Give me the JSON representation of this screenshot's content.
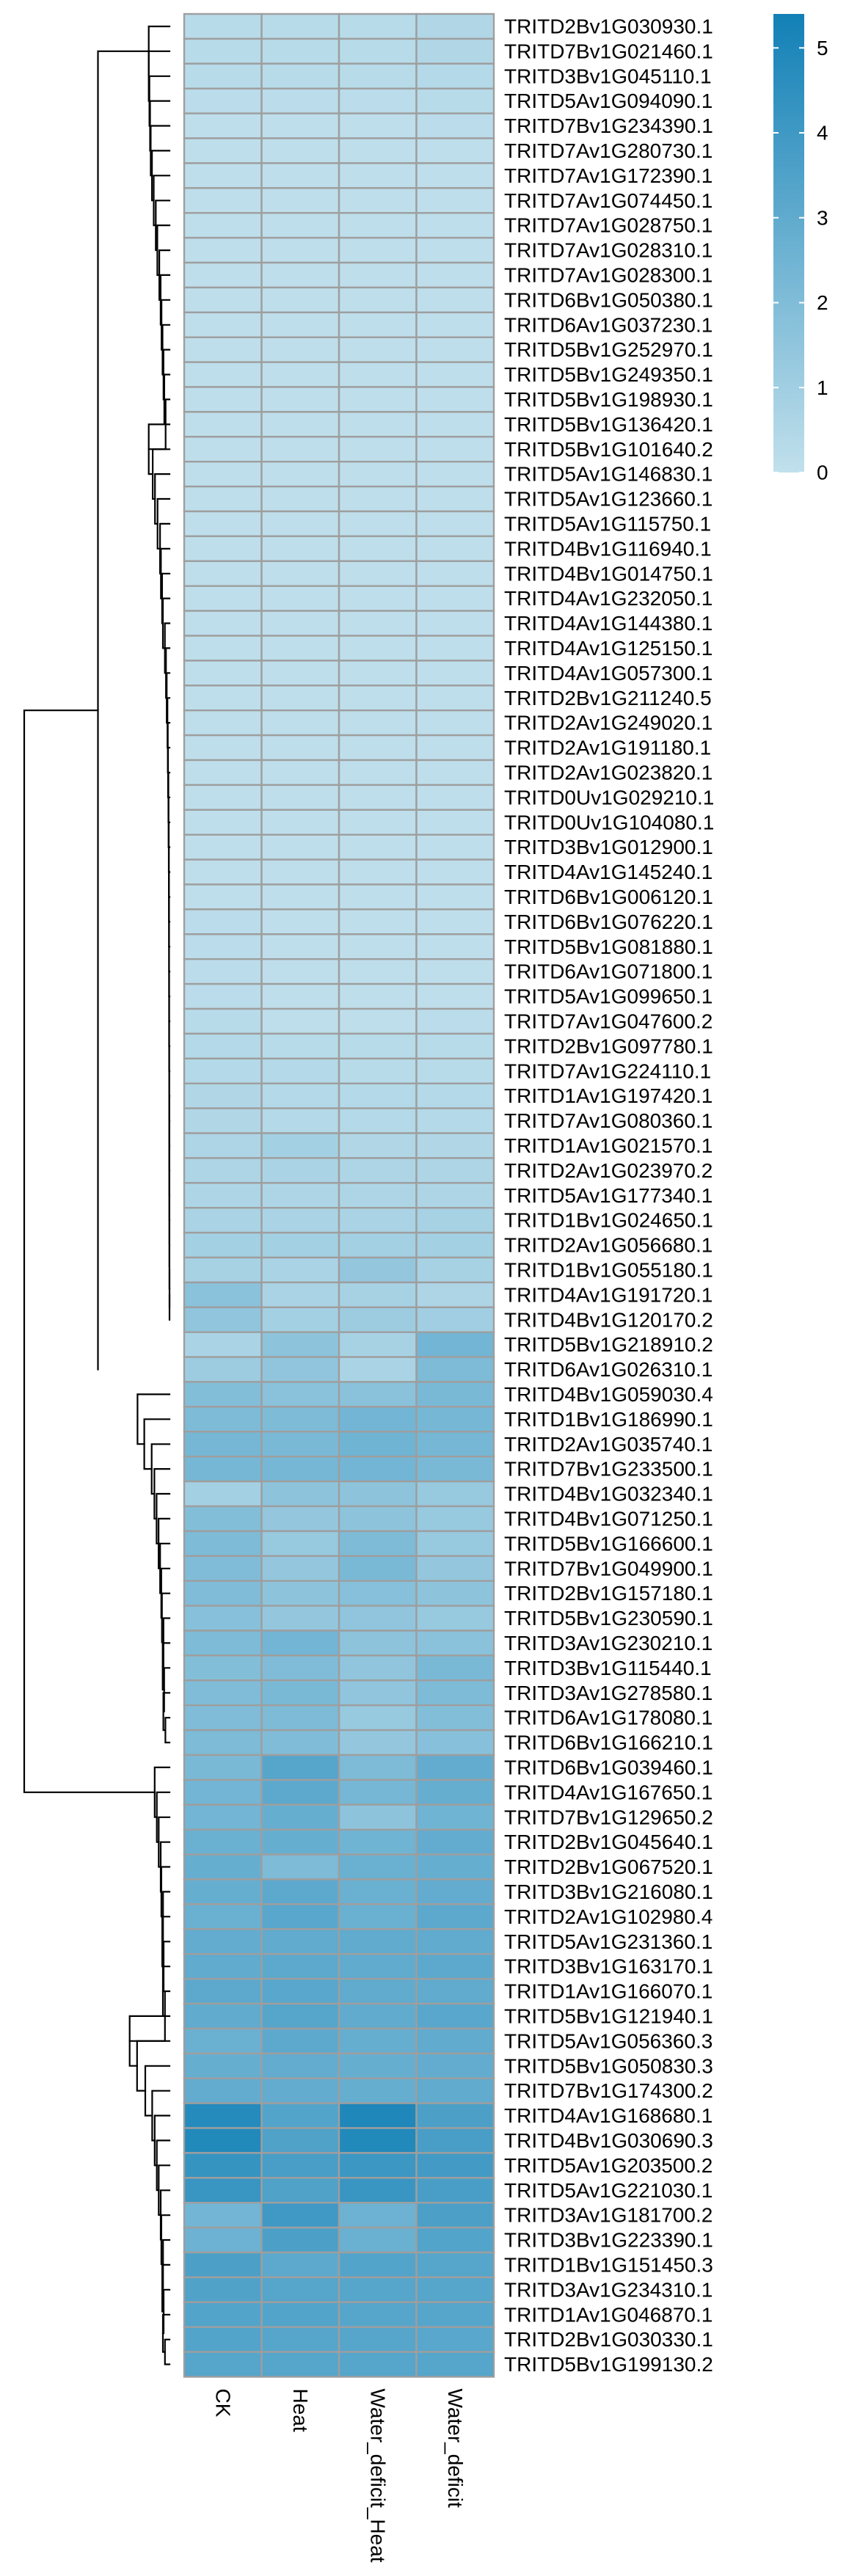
{
  "chart_data": {
    "type": "heatmap",
    "columns": [
      "CK",
      "Heat",
      "Water_deficit_Heat",
      "Water_deficit"
    ],
    "rows": [
      "TRITD2Bv1G030930.1",
      "TRITD7Bv1G021460.1",
      "TRITD3Bv1G045110.1",
      "TRITD5Av1G094090.1",
      "TRITD7Bv1G234390.1",
      "TRITD7Av1G280730.1",
      "TRITD7Av1G172390.1",
      "TRITD7Av1G074450.1",
      "TRITD7Av1G028750.1",
      "TRITD7Av1G028310.1",
      "TRITD7Av1G028300.1",
      "TRITD6Bv1G050380.1",
      "TRITD6Av1G037230.1",
      "TRITD5Bv1G252970.1",
      "TRITD5Bv1G249350.1",
      "TRITD5Bv1G198930.1",
      "TRITD5Bv1G136420.1",
      "TRITD5Bv1G101640.2",
      "TRITD5Av1G146830.1",
      "TRITD5Av1G123660.1",
      "TRITD5Av1G115750.1",
      "TRITD4Bv1G116940.1",
      "TRITD4Bv1G014750.1",
      "TRITD4Av1G232050.1",
      "TRITD4Av1G144380.1",
      "TRITD4Av1G125150.1",
      "TRITD4Av1G057300.1",
      "TRITD2Bv1G211240.5",
      "TRITD2Av1G249020.1",
      "TRITD2Av1G191180.1",
      "TRITD2Av1G023820.1",
      "TRITD0Uv1G029210.1",
      "TRITD0Uv1G104080.1",
      "TRITD3Bv1G012900.1",
      "TRITD4Av1G145240.1",
      "TRITD6Bv1G006120.1",
      "TRITD6Bv1G076220.1",
      "TRITD5Bv1G081880.1",
      "TRITD6Av1G071800.1",
      "TRITD5Av1G099650.1",
      "TRITD7Av1G047600.2",
      "TRITD2Bv1G097780.1",
      "TRITD7Av1G224110.1",
      "TRITD1Av1G197420.1",
      "TRITD7Av1G080360.1",
      "TRITD1Av1G021570.1",
      "TRITD2Av1G023970.2",
      "TRITD5Av1G177340.1",
      "TRITD1Bv1G024650.1",
      "TRITD2Av1G056680.1",
      "TRITD1Bv1G055180.1",
      "TRITD4Av1G191720.1",
      "TRITD4Bv1G120170.2",
      "TRITD5Bv1G218910.2",
      "TRITD6Av1G026310.1",
      "TRITD4Bv1G059030.4",
      "TRITD1Bv1G186990.1",
      "TRITD2Av1G035740.1",
      "TRITD7Bv1G233500.1",
      "TRITD4Bv1G032340.1",
      "TRITD4Bv1G071250.1",
      "TRITD5Bv1G166600.1",
      "TRITD7Bv1G049900.1",
      "TRITD2Bv1G157180.1",
      "TRITD5Bv1G230590.1",
      "TRITD3Av1G230210.1",
      "TRITD3Bv1G115440.1",
      "TRITD3Av1G278580.1",
      "TRITD6Av1G178080.1",
      "TRITD6Bv1G166210.1",
      "TRITD6Bv1G039460.1",
      "TRITD4Av1G167650.1",
      "TRITD7Bv1G129650.2",
      "TRITD2Bv1G045640.1",
      "TRITD2Bv1G067520.1",
      "TRITD3Bv1G216080.1",
      "TRITD2Av1G102980.4",
      "TRITD5Av1G231360.1",
      "TRITD3Bv1G163170.1",
      "TRITD1Av1G166070.1",
      "TRITD5Bv1G121940.1",
      "TRITD5Av1G056360.3",
      "TRITD5Bv1G050830.3",
      "TRITD7Bv1G174300.2",
      "TRITD4Av1G168680.1",
      "TRITD4Bv1G030690.3",
      "TRITD5Av1G203500.2",
      "TRITD5Av1G221030.1",
      "TRITD3Av1G181700.2",
      "TRITD3Bv1G223390.1",
      "TRITD1Bv1G151450.3",
      "TRITD3Av1G234310.1",
      "TRITD1Av1G046870.1",
      "TRITD2Bv1G030330.1",
      "TRITD5Bv1G199130.2"
    ],
    "values": [
      [
        0.3,
        0.3,
        0.3,
        0.5
      ],
      [
        0.3,
        0.3,
        0.3,
        0.5
      ],
      [
        0.3,
        0.3,
        0.3,
        0.4
      ],
      [
        0.2,
        0.2,
        0.2,
        0.3
      ],
      [
        0.1,
        0.1,
        0.1,
        0.2
      ],
      [
        0.1,
        0.1,
        0.1,
        0.1
      ],
      [
        0.1,
        0.1,
        0.1,
        0.1
      ],
      [
        0.1,
        0.1,
        0.1,
        0.1
      ],
      [
        0.1,
        0.1,
        0.1,
        0.1
      ],
      [
        0.1,
        0.1,
        0.1,
        0.1
      ],
      [
        0.1,
        0.1,
        0.1,
        0.1
      ],
      [
        0.1,
        0.1,
        0.1,
        0.1
      ],
      [
        0.1,
        0.1,
        0.1,
        0.1
      ],
      [
        0.1,
        0.1,
        0.1,
        0.1
      ],
      [
        0.1,
        0.1,
        0.1,
        0.1
      ],
      [
        0.1,
        0.1,
        0.1,
        0.1
      ],
      [
        0.1,
        0.1,
        0.1,
        0.1
      ],
      [
        0.1,
        0.1,
        0.1,
        0.1
      ],
      [
        0.1,
        0.1,
        0.1,
        0.1
      ],
      [
        0.1,
        0.1,
        0.1,
        0.1
      ],
      [
        0.1,
        0.1,
        0.1,
        0.1
      ],
      [
        0.1,
        0.1,
        0.1,
        0.1
      ],
      [
        0.1,
        0.1,
        0.1,
        0.1
      ],
      [
        0.1,
        0.1,
        0.1,
        0.1
      ],
      [
        0.1,
        0.1,
        0.1,
        0.1
      ],
      [
        0.1,
        0.1,
        0.1,
        0.1
      ],
      [
        0.1,
        0.1,
        0.1,
        0.1
      ],
      [
        0.1,
        0.1,
        0.1,
        0.1
      ],
      [
        0.1,
        0.1,
        0.1,
        0.1
      ],
      [
        0.1,
        0.1,
        0.1,
        0.1
      ],
      [
        0.1,
        0.1,
        0.1,
        0.1
      ],
      [
        0.1,
        0.1,
        0.1,
        0.1
      ],
      [
        0.1,
        0.1,
        0.1,
        0.1
      ],
      [
        0.1,
        0.1,
        0.1,
        0.1
      ],
      [
        0.1,
        0.1,
        0.1,
        0.1
      ],
      [
        0.1,
        0.1,
        0.1,
        0.1
      ],
      [
        0.2,
        0.1,
        0.1,
        0.1
      ],
      [
        0.2,
        0.1,
        0.1,
        0.1
      ],
      [
        0.2,
        0.1,
        0.1,
        0.1
      ],
      [
        0.2,
        0.1,
        0.1,
        0.1
      ],
      [
        0.3,
        0.1,
        0.1,
        0.2
      ],
      [
        0.4,
        0.3,
        0.3,
        0.3
      ],
      [
        0.4,
        0.4,
        0.3,
        0.3
      ],
      [
        0.5,
        0.4,
        0.4,
        0.4
      ],
      [
        0.5,
        0.4,
        0.4,
        0.4
      ],
      [
        0.6,
        0.9,
        0.5,
        0.5
      ],
      [
        0.6,
        0.7,
        0.6,
        0.6
      ],
      [
        0.6,
        0.6,
        0.6,
        0.6
      ],
      [
        0.7,
        0.7,
        0.7,
        0.8
      ],
      [
        0.9,
        0.9,
        0.9,
        0.9
      ],
      [
        0.8,
        0.7,
        1.4,
        0.8
      ],
      [
        1.7,
        0.7,
        0.8,
        0.6
      ],
      [
        1.5,
        0.9,
        1.1,
        1.0
      ],
      [
        0.7,
        1.6,
        0.8,
        2.4
      ],
      [
        1.1,
        1.5,
        0.7,
        2.1
      ],
      [
        1.9,
        1.7,
        1.7,
        2.2
      ],
      [
        2.1,
        2.1,
        2.4,
        2.3
      ],
      [
        2.3,
        2.2,
        2.5,
        2.3
      ],
      [
        2.3,
        2.3,
        2.4,
        2.2
      ],
      [
        0.9,
        1.6,
        1.6,
        1.3
      ],
      [
        1.9,
        1.4,
        1.6,
        1.3
      ],
      [
        2.1,
        1.3,
        2.1,
        1.3
      ],
      [
        2.0,
        1.4,
        2.2,
        1.4
      ],
      [
        2.0,
        1.6,
        1.8,
        1.6
      ],
      [
        1.8,
        1.4,
        1.5,
        1.3
      ],
      [
        2.1,
        2.4,
        1.6,
        1.7
      ],
      [
        1.9,
        2.0,
        1.5,
        2.2
      ],
      [
        2.0,
        2.2,
        1.5,
        2.1
      ],
      [
        2.0,
        2.1,
        1.3,
        1.9
      ],
      [
        2.1,
        2.0,
        1.4,
        1.8
      ],
      [
        2.2,
        3.3,
        2.1,
        2.9
      ],
      [
        2.4,
        3.1,
        2.3,
        2.8
      ],
      [
        2.4,
        2.8,
        1.6,
        2.5
      ],
      [
        2.7,
        2.8,
        2.5,
        2.9
      ],
      [
        2.8,
        2.1,
        2.7,
        2.8
      ],
      [
        2.8,
        3.1,
        2.7,
        2.9
      ],
      [
        2.7,
        3.2,
        2.7,
        3.1
      ],
      [
        2.9,
        3.0,
        3.0,
        3.0
      ],
      [
        3.0,
        3.1,
        3.0,
        3.1
      ],
      [
        3.1,
        3.2,
        3.0,
        3.0
      ],
      [
        3.0,
        3.3,
        3.0,
        3.2
      ],
      [
        2.7,
        3.1,
        2.8,
        3.0
      ],
      [
        2.8,
        2.9,
        2.8,
        2.9
      ],
      [
        2.9,
        2.9,
        2.8,
        3.0
      ],
      [
        4.8,
        3.4,
        5.0,
        3.6
      ],
      [
        4.9,
        3.5,
        4.9,
        3.7
      ],
      [
        4.3,
        3.7,
        4.1,
        3.9
      ],
      [
        4.2,
        3.5,
        4.2,
        3.7
      ],
      [
        2.4,
        4.0,
        2.6,
        3.6
      ],
      [
        2.6,
        3.6,
        2.7,
        3.4
      ],
      [
        3.6,
        3.1,
        3.4,
        3.3
      ],
      [
        3.5,
        3.3,
        3.3,
        3.3
      ],
      [
        3.4,
        3.4,
        3.3,
        3.3
      ],
      [
        3.4,
        3.3,
        3.3,
        3.2
      ],
      [
        3.3,
        3.3,
        3.3,
        3.3
      ]
    ],
    "legend": {
      "ticks": [
        0,
        1,
        2,
        3,
        4,
        5
      ],
      "range": [
        0,
        5.4
      ],
      "color_low": "#c1e0ec",
      "color_high": "#1280b6"
    },
    "cell_border_color": "#9e9e9e",
    "dendrogram": "row clustering, shown on the left"
  }
}
